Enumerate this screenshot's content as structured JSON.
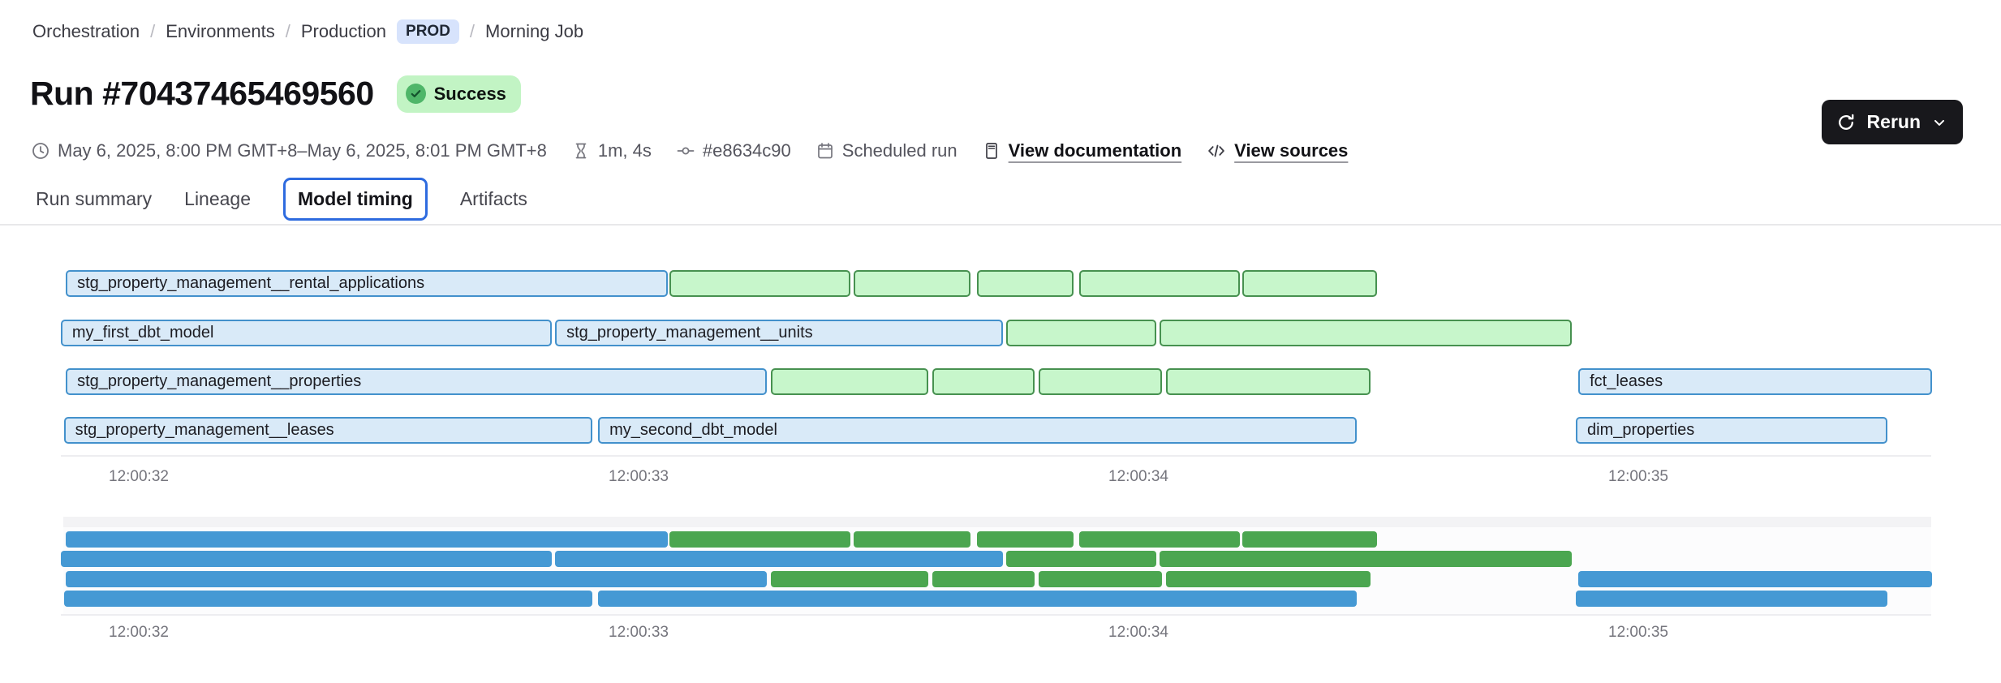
{
  "breadcrumb": {
    "separator": "/",
    "items": [
      {
        "label": "Orchestration"
      },
      {
        "label": "Environments"
      },
      {
        "label": "Production",
        "badge": "PROD"
      },
      {
        "label": "Morning Job"
      }
    ]
  },
  "header": {
    "title": "Run #70437465469560",
    "status_label": "Success"
  },
  "actions": {
    "rerun_label": "Rerun"
  },
  "meta": {
    "date_range": "May 6, 2025, 8:00 PM GMT+8–May 6, 2025, 8:01 PM GMT+8",
    "duration": "1m, 4s",
    "commit": "#e8634c90",
    "trigger": "Scheduled run",
    "documentation_link": "View documentation",
    "sources_link": "View sources"
  },
  "tabs": [
    {
      "label": "Run summary",
      "active": false
    },
    {
      "label": "Lineage",
      "active": false
    },
    {
      "label": "Model timing",
      "active": true
    },
    {
      "label": "Artifacts",
      "active": false
    }
  ],
  "colors": {
    "accent_tab_border": "#2e6bdf",
    "status_badge_bg": "#c2f4c4",
    "status_icon_green": "#4fb669",
    "env_badge_bg": "#d7e3fc",
    "rerun_button_bg": "#18181c",
    "bar_blue_fill": "#d9eaf8",
    "bar_blue_border": "#4391cc",
    "bar_green_fill": "#c7f6cb",
    "bar_green_border": "#479150",
    "minimap_blue": "#4599d4",
    "minimap_green": "#4ba650"
  },
  "chart_data": {
    "type": "gantt",
    "title": "Model timing",
    "time_unit": "seconds after 12:00:00",
    "x_range": [
      31.7,
      35.75
    ],
    "x_ticks": [
      {
        "t": 32,
        "label": "12:00:32"
      },
      {
        "t": 33,
        "label": "12:00:33"
      },
      {
        "t": 34,
        "label": "12:00:34"
      },
      {
        "t": 35,
        "label": "12:00:35"
      }
    ],
    "rows": [
      {
        "bars": [
          {
            "name": "stg_property_management__rental_applications",
            "color": "blue",
            "start": 31.854,
            "end": 33.059
          },
          {
            "name": "",
            "color": "green",
            "start": 33.062,
            "end": 33.423
          },
          {
            "name": "",
            "color": "green",
            "start": 33.43,
            "end": 33.664
          },
          {
            "name": "",
            "color": "green",
            "start": 33.677,
            "end": 33.87
          },
          {
            "name": "",
            "color": "green",
            "start": 33.881,
            "end": 34.203
          },
          {
            "name": "",
            "color": "green",
            "start": 34.208,
            "end": 34.478
          }
        ]
      },
      {
        "bars": [
          {
            "name": "my_first_dbt_model",
            "color": "blue",
            "start": 31.844,
            "end": 32.826
          },
          {
            "name": "stg_property_management__units",
            "color": "blue",
            "start": 32.833,
            "end": 33.729
          },
          {
            "name": "",
            "color": "green",
            "start": 33.735,
            "end": 34.036
          },
          {
            "name": "",
            "color": "green",
            "start": 34.042,
            "end": 34.867
          }
        ]
      },
      {
        "bars": [
          {
            "name": "stg_property_management__properties",
            "color": "blue",
            "start": 31.854,
            "end": 33.257
          },
          {
            "name": "",
            "color": "green",
            "start": 33.265,
            "end": 33.579
          },
          {
            "name": "",
            "color": "green",
            "start": 33.587,
            "end": 33.792
          },
          {
            "name": "",
            "color": "green",
            "start": 33.8,
            "end": 34.047
          },
          {
            "name": "",
            "color": "green",
            "start": 34.055,
            "end": 34.465
          },
          {
            "name": "fct_leases",
            "color": "blue",
            "start": 34.88,
            "end": 35.587
          }
        ]
      },
      {
        "bars": [
          {
            "name": "stg_property_management__leases",
            "color": "blue",
            "start": 31.85,
            "end": 32.907
          },
          {
            "name": "my_second_dbt_model",
            "color": "blue",
            "start": 32.919,
            "end": 34.437
          },
          {
            "name": "dim_properties",
            "color": "blue",
            "start": 34.875,
            "end": 35.499
          }
        ]
      }
    ]
  }
}
